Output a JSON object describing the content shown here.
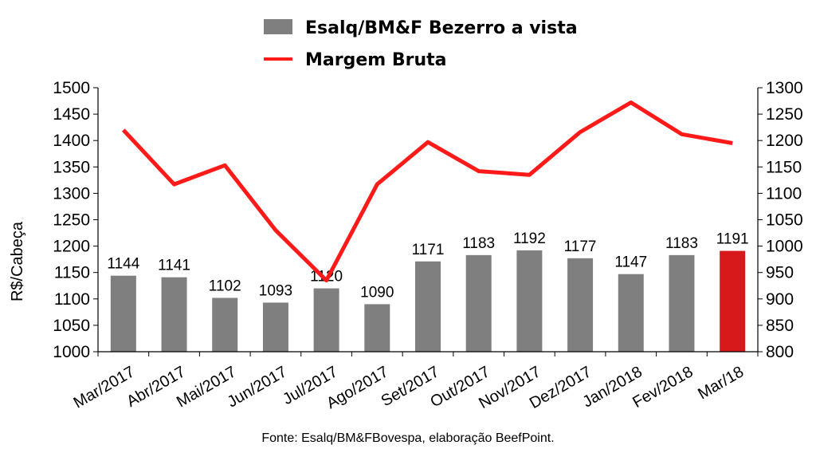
{
  "chart_data": {
    "type": "bar",
    "categories": [
      "Mar/2017",
      "Abr/2017",
      "Mai/2017",
      "Jun/2017",
      "Jul/2017",
      "Ago/2017",
      "Set/2017",
      "Out/2017",
      "Nov/2017",
      "Dez/2017",
      "Jan/2018",
      "Fev/2018",
      "Mar/18"
    ],
    "series": [
      {
        "name": "Esalq/BM&F Bezerro a vista",
        "type": "bar",
        "axis": "left",
        "color": "#7f7f7f",
        "highlight_color": "#d7191c",
        "highlight_index": 12,
        "values": [
          1144,
          1141,
          1102,
          1093,
          1120,
          1090,
          1171,
          1183,
          1192,
          1177,
          1147,
          1183,
          1191
        ]
      },
      {
        "name": "Margem Bruta",
        "type": "line",
        "axis": "right",
        "color": "#ff1a1a",
        "values": [
          1220,
          1117,
          1153,
          1030,
          935,
          1117,
          1197,
          1142,
          1135,
          1216,
          1272,
          1212,
          1195
        ]
      }
    ],
    "ylabel": "R$/Cabeça",
    "ylim": [
      1000,
      1500
    ],
    "yticks": [
      "1000",
      "1050",
      "1100",
      "1150",
      "1200",
      "1250",
      "1300",
      "1350",
      "1400",
      "1450",
      "1500"
    ],
    "y2lim": [
      800,
      1300
    ],
    "y2ticks": [
      "800",
      "850",
      "900",
      "950",
      "1000",
      "1050",
      "1100",
      "1150",
      "1200",
      "1250",
      "1300"
    ],
    "legend": "top"
  },
  "source": "Fonte: Esalq/BM&FBovespa, elaboração BeefPoint."
}
